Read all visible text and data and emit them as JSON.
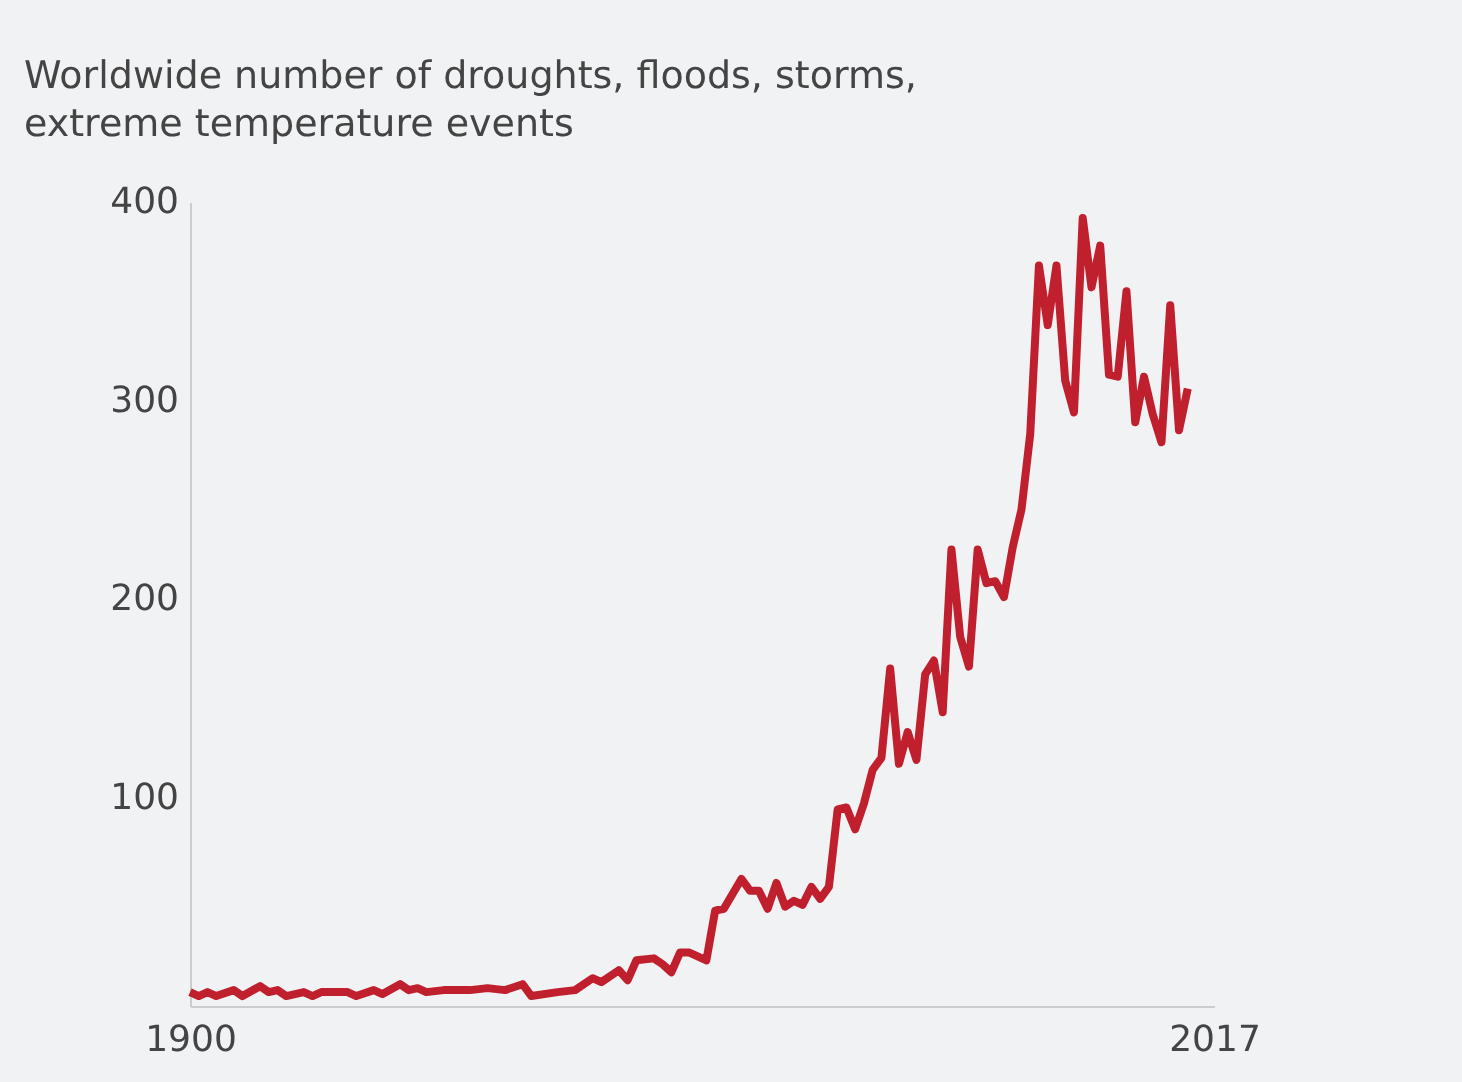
{
  "chart_data": {
    "type": "line",
    "title": "Worldwide number of droughts, floods, storms, extreme temperature events",
    "x": [
      1900,
      1901,
      1902,
      1903,
      1905,
      1906,
      1908,
      1909,
      1910,
      1911,
      1913,
      1914,
      1915,
      1918,
      1919,
      1921,
      1922,
      1924,
      1925,
      1926,
      1927,
      1929,
      1932,
      1934,
      1936,
      1938,
      1939,
      1942,
      1944,
      1946,
      1947,
      1949,
      1950,
      1951,
      1953,
      1954,
      1955,
      1956,
      1957,
      1959,
      1960,
      1961,
      1963,
      1964,
      1965,
      1966,
      1967,
      1968,
      1969,
      1970,
      1971,
      1972,
      1973,
      1974,
      1975,
      1976,
      1977,
      1978,
      1979,
      1980,
      1981,
      1982,
      1983,
      1984,
      1985,
      1986,
      1987,
      1988,
      1989,
      1990,
      1991,
      1992,
      1993,
      1994,
      1995,
      1996,
      1997,
      1998,
      1999,
      2000,
      2001,
      2002,
      2003,
      2004,
      2005,
      2006,
      2007,
      2008,
      2009,
      2010,
      2011,
      2012,
      2013,
      2014
    ],
    "series": [
      {
        "color": "#c0202e",
        "values": [
          2,
          0,
          2,
          0,
          3,
          0,
          5,
          2,
          3,
          0,
          2,
          0,
          2,
          2,
          0,
          3,
          1,
          6,
          3,
          4,
          2,
          3,
          3,
          4,
          3,
          6,
          0,
          2,
          3,
          9,
          7,
          13,
          8,
          18,
          19,
          16,
          12,
          22,
          22,
          18,
          43,
          44,
          59,
          53,
          53,
          44,
          57,
          45,
          48,
          46,
          55,
          49,
          55,
          94,
          95,
          84,
          97,
          114,
          120,
          165,
          117,
          133,
          119,
          162,
          169,
          143,
          225,
          181,
          166,
          225,
          208,
          209,
          201,
          226,
          245,
          283,
          368,
          338,
          368,
          310,
          294,
          392,
          357,
          378,
          313,
          312,
          355,
          289,
          312,
          293,
          279,
          348,
          285,
          306
        ]
      }
    ],
    "xlim": [
      1900,
      2017
    ],
    "xticks": [
      1900,
      2017
    ],
    "ylim": [
      -5,
      400
    ],
    "yticks": [
      100,
      200,
      300,
      400
    ],
    "grid": false,
    "legend": false,
    "marker": "none",
    "line_style": "solid"
  }
}
